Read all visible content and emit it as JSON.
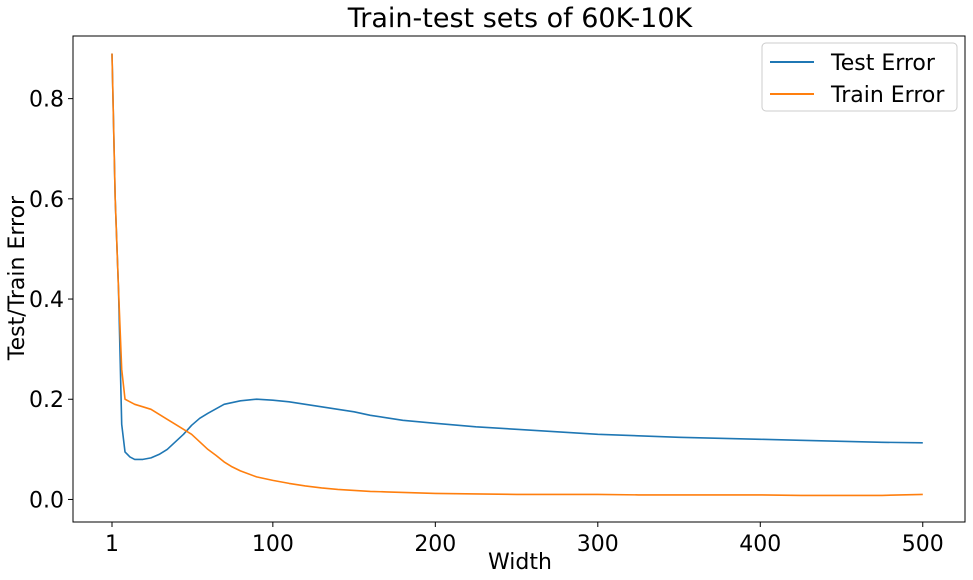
{
  "chart_data": {
    "type": "line",
    "title": "Train-test sets of 60K-10K",
    "xlabel": "Width",
    "ylabel": "Test/Train Error",
    "xlim": [
      -23,
      526
    ],
    "ylim": [
      -0.045,
      0.925
    ],
    "xticks": [
      1,
      100,
      200,
      300,
      400,
      500
    ],
    "xtick_labels": [
      "1",
      "100",
      "200",
      "300",
      "400",
      "500"
    ],
    "yticks": [
      0.0,
      0.2,
      0.4,
      0.6,
      0.8
    ],
    "ytick_labels": [
      "0.0",
      "0.2",
      "0.4",
      "0.6",
      "0.8"
    ],
    "grid": false,
    "legend_position": "top-right",
    "series": [
      {
        "name": "Test Error",
        "color": "#1f77b4",
        "x": [
          1,
          3,
          5,
          7,
          9,
          12,
          15,
          20,
          25,
          30,
          35,
          40,
          45,
          50,
          55,
          60,
          70,
          80,
          90,
          100,
          110,
          120,
          130,
          140,
          150,
          160,
          170,
          180,
          190,
          200,
          225,
          250,
          275,
          300,
          325,
          350,
          375,
          400,
          425,
          450,
          475,
          500
        ],
        "y": [
          0.89,
          0.6,
          0.42,
          0.15,
          0.095,
          0.085,
          0.08,
          0.08,
          0.083,
          0.09,
          0.1,
          0.115,
          0.13,
          0.148,
          0.162,
          0.172,
          0.19,
          0.197,
          0.2,
          0.198,
          0.195,
          0.19,
          0.185,
          0.18,
          0.175,
          0.168,
          0.163,
          0.158,
          0.155,
          0.152,
          0.145,
          0.14,
          0.135,
          0.13,
          0.127,
          0.124,
          0.122,
          0.12,
          0.118,
          0.116,
          0.114,
          0.113
        ]
      },
      {
        "name": "Train Error",
        "color": "#ff7f0e",
        "x": [
          1,
          3,
          5,
          7,
          9,
          12,
          15,
          20,
          25,
          30,
          35,
          40,
          45,
          50,
          55,
          60,
          65,
          70,
          75,
          80,
          90,
          100,
          110,
          120,
          130,
          140,
          150,
          160,
          170,
          180,
          190,
          200,
          225,
          250,
          275,
          300,
          325,
          350,
          375,
          400,
          425,
          450,
          475,
          500
        ],
        "y": [
          0.89,
          0.6,
          0.42,
          0.26,
          0.2,
          0.195,
          0.19,
          0.185,
          0.18,
          0.17,
          0.16,
          0.15,
          0.14,
          0.13,
          0.115,
          0.1,
          0.088,
          0.075,
          0.065,
          0.057,
          0.045,
          0.038,
          0.032,
          0.027,
          0.023,
          0.02,
          0.018,
          0.016,
          0.015,
          0.014,
          0.013,
          0.012,
          0.011,
          0.01,
          0.01,
          0.01,
          0.009,
          0.009,
          0.009,
          0.009,
          0.008,
          0.008,
          0.008,
          0.01
        ]
      }
    ]
  }
}
